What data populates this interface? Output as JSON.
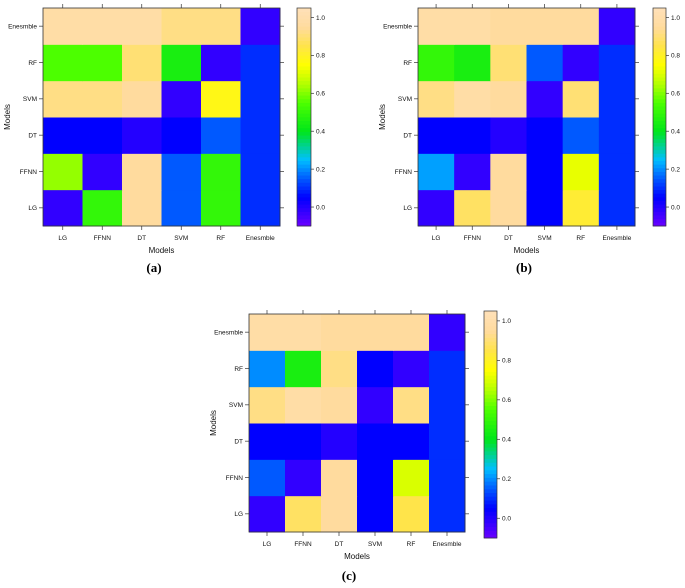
{
  "figure": {
    "panels": [
      {
        "caption": "(a)"
      },
      {
        "caption": "(b)"
      },
      {
        "caption": "(c)"
      }
    ]
  },
  "chart_data": [
    {
      "type": "heatmap",
      "xlabel": "Models",
      "ylabel": "Models",
      "x_categories": [
        "LG",
        "FFNN",
        "DT",
        "SVM",
        "RF",
        "Enesmble"
      ],
      "y_categories": [
        "LG",
        "FFNN",
        "DT",
        "SVM",
        "RF",
        "Enesmble"
      ],
      "values": [
        [
          -0.02,
          0.5,
          0.95,
          0.15,
          0.5,
          0.1
        ],
        [
          0.62,
          -0.02,
          0.95,
          0.15,
          0.5,
          0.1
        ],
        [
          0.05,
          0.05,
          0.0,
          0.05,
          0.15,
          0.1
        ],
        [
          0.92,
          0.92,
          0.95,
          -0.02,
          0.78,
          0.1
        ],
        [
          0.55,
          0.55,
          0.9,
          0.45,
          -0.02,
          0.1
        ],
        [
          0.98,
          0.98,
          0.98,
          0.92,
          0.92,
          -0.02
        ]
      ],
      "zlim": [
        -0.1,
        1.05
      ],
      "colorbar_ticks": [
        "0.0",
        "0.2",
        "0.4",
        "0.6",
        "0.8",
        "1.0"
      ]
    },
    {
      "type": "heatmap",
      "xlabel": "Models",
      "ylabel": "Models",
      "x_categories": [
        "LG",
        "FFNN",
        "DT",
        "SVM",
        "RF",
        "Enesmble"
      ],
      "y_categories": [
        "LG",
        "FFNN",
        "DT",
        "SVM",
        "RF",
        "Enesmble"
      ],
      "values": [
        [
          -0.02,
          0.88,
          0.95,
          0.05,
          0.82,
          0.1
        ],
        [
          0.22,
          -0.02,
          0.95,
          0.05,
          0.72,
          0.1
        ],
        [
          0.05,
          0.05,
          0.0,
          0.05,
          0.15,
          0.1
        ],
        [
          0.92,
          0.98,
          0.95,
          -0.02,
          0.9,
          0.1
        ],
        [
          0.5,
          0.45,
          0.9,
          0.15,
          -0.02,
          0.1
        ],
        [
          0.98,
          0.98,
          0.95,
          0.95,
          0.95,
          -0.02
        ]
      ],
      "zlim": [
        -0.1,
        1.05
      ],
      "colorbar_ticks": [
        "0.0",
        "0.2",
        "0.4",
        "0.6",
        "0.8",
        "1.0"
      ]
    },
    {
      "type": "heatmap",
      "xlabel": "Models",
      "ylabel": "Models",
      "x_categories": [
        "LG",
        "FFNN",
        "DT",
        "SVM",
        "RF",
        "Enesmble"
      ],
      "y_categories": [
        "LG",
        "FFNN",
        "DT",
        "SVM",
        "RF",
        "Enesmble"
      ],
      "values": [
        [
          -0.02,
          0.88,
          0.95,
          0.05,
          0.85,
          0.1
        ],
        [
          0.15,
          -0.02,
          0.95,
          0.05,
          0.7,
          0.1
        ],
        [
          0.05,
          0.05,
          0.0,
          0.05,
          0.05,
          0.1
        ],
        [
          0.92,
          0.98,
          0.95,
          -0.02,
          0.92,
          0.1
        ],
        [
          0.2,
          0.45,
          0.92,
          0.05,
          -0.02,
          0.1
        ],
        [
          0.98,
          0.98,
          0.95,
          0.95,
          0.95,
          -0.02
        ]
      ],
      "zlim": [
        -0.1,
        1.05
      ],
      "colorbar_ticks": [
        "0.0",
        "0.2",
        "0.4",
        "0.6",
        "0.8",
        "1.0"
      ]
    }
  ]
}
